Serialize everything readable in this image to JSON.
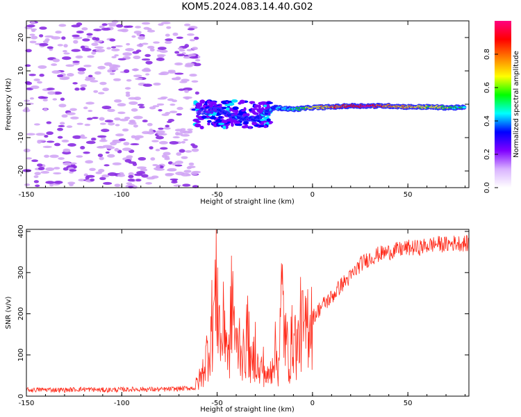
{
  "title": "KOM5.2024.083.14.40.G02",
  "chart_data": [
    {
      "type": "heatmap",
      "xlabel": "Height of straight line (km)",
      "ylabel": "Frequency (Hz)",
      "xlim": [
        -150,
        82
      ],
      "ylim": [
        -25,
        25
      ],
      "xticks": [
        -150,
        -100,
        -50,
        0,
        50
      ],
      "yticks": [
        -20,
        -10,
        0,
        10,
        20
      ],
      "colorbar": {
        "label": "Normalized spectral amplitude",
        "range": [
          0,
          1
        ],
        "ticks": [
          "0.0",
          "0.2",
          "0.4",
          "0.6",
          "0.8"
        ],
        "colors": [
          "#ffffff",
          "#d9b3ff",
          "#8000ff",
          "#0000ff",
          "#00ffff",
          "#00ff00",
          "#ffff00",
          "#ff8000",
          "#ff0000",
          "#ff0080"
        ]
      },
      "signal_track": [
        {
          "x": -60,
          "f": -2.5,
          "amp": 0.15
        },
        {
          "x": -50,
          "f": -1.5,
          "amp": 0.2
        },
        {
          "x": -40,
          "f": -4.0,
          "amp": 0.3
        },
        {
          "x": -30,
          "f": -4.5,
          "amp": 0.25
        },
        {
          "x": -20,
          "f": -1.0,
          "amp": 0.35
        },
        {
          "x": -10,
          "f": -1.5,
          "amp": 0.4
        },
        {
          "x": 0,
          "f": -1.0,
          "amp": 0.6
        },
        {
          "x": 10,
          "f": -0.8,
          "amp": 0.7
        },
        {
          "x": 20,
          "f": -0.5,
          "amp": 0.85
        },
        {
          "x": 30,
          "f": -0.5,
          "amp": 0.9
        },
        {
          "x": 40,
          "f": -0.5,
          "amp": 0.7
        },
        {
          "x": 50,
          "f": -0.8,
          "amp": 0.65
        },
        {
          "x": 60,
          "f": -0.8,
          "amp": 0.6
        },
        {
          "x": 70,
          "f": -1.0,
          "amp": 0.55
        },
        {
          "x": 80,
          "f": -1.0,
          "amp": 0.4
        }
      ],
      "noise_region": {
        "x_range": [
          -150,
          -60
        ],
        "amp_range": [
          0.02,
          0.15
        ]
      }
    },
    {
      "type": "line",
      "xlabel": "Height of straight line (km)",
      "ylabel": "SNR (v/v)",
      "xlim": [
        -150,
        82
      ],
      "ylim": [
        0,
        405
      ],
      "xticks": [
        -150,
        -100,
        -50,
        0,
        50
      ],
      "yticks": [
        0,
        100,
        200,
        300,
        400
      ],
      "series": [
        {
          "color": "#ff2a1a",
          "x": [
            -150,
            -140,
            -130,
            -120,
            -110,
            -100,
            -90,
            -80,
            -70,
            -62,
            -58,
            -54,
            -52,
            -50,
            -48,
            -46,
            -44,
            -42,
            -40,
            -38,
            -36,
            -34,
            -32,
            -30,
            -28,
            -26,
            -24,
            -22,
            -20,
            -18,
            -16,
            -14,
            -12,
            -10,
            -8,
            -6,
            -4,
            -2,
            0,
            5,
            10,
            15,
            20,
            25,
            30,
            35,
            40,
            45,
            50,
            55,
            60,
            65,
            70,
            75,
            82
          ],
          "values": [
            15,
            16,
            15,
            17,
            15,
            16,
            17,
            16,
            18,
            20,
            50,
            130,
            200,
            260,
            120,
            190,
            80,
            250,
            110,
            140,
            90,
            160,
            60,
            120,
            50,
            80,
            40,
            60,
            120,
            70,
            240,
            130,
            90,
            160,
            110,
            180,
            140,
            200,
            190,
            220,
            240,
            270,
            290,
            320,
            335,
            345,
            350,
            355,
            360,
            360,
            365,
            370,
            368,
            372,
            370
          ]
        }
      ]
    }
  ]
}
